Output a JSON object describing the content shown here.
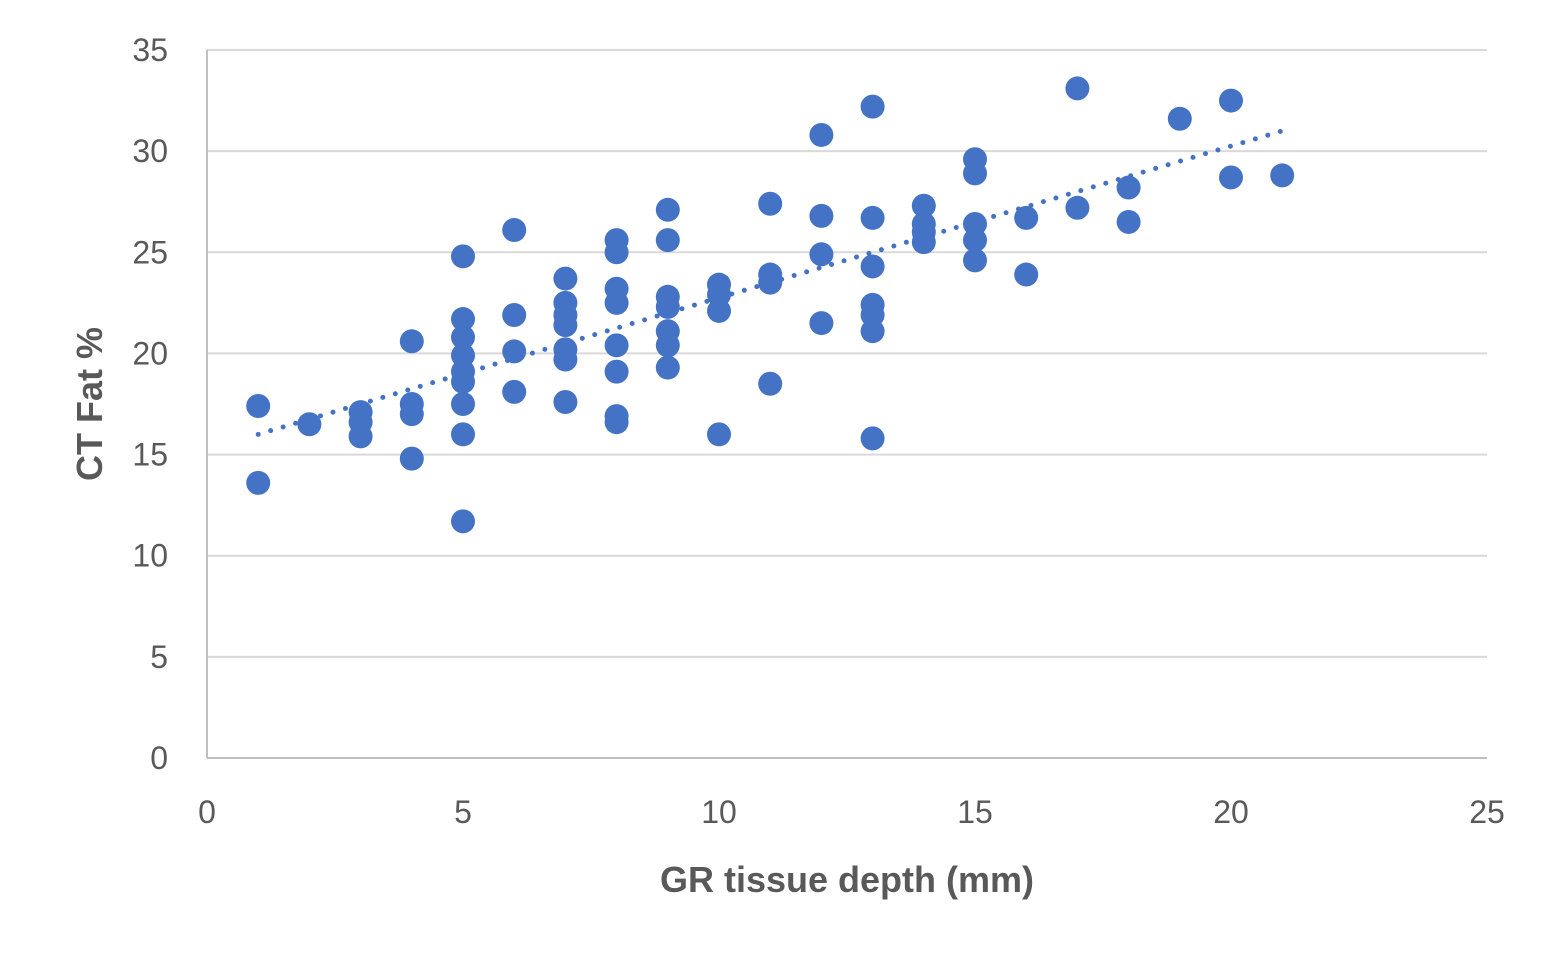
{
  "chart_data": {
    "type": "scatter",
    "title": "",
    "xlabel": "GR tissue depth (mm)",
    "ylabel": "CT Fat %",
    "xlim": [
      0,
      25
    ],
    "ylim": [
      0,
      35
    ],
    "x_ticks": [
      "0",
      "5",
      "10",
      "15",
      "20",
      "25"
    ],
    "y_ticks": [
      "0",
      "5",
      "10",
      "15",
      "20",
      "25",
      "30",
      "35"
    ],
    "grid": "horizontal",
    "legend": "none",
    "marker_color": "#4472c4",
    "trendline": {
      "type": "linear",
      "style": "dotted",
      "color": "#4472c4",
      "x_range": [
        1,
        21
      ],
      "y_range": [
        16.0,
        31.0
      ]
    },
    "series": [
      {
        "points": [
          [
            1,
            17.4
          ],
          [
            1,
            13.6
          ],
          [
            2,
            16.5
          ],
          [
            3,
            17.1
          ],
          [
            3,
            16.6
          ],
          [
            3,
            15.9
          ],
          [
            4,
            20.6
          ],
          [
            4,
            17.5
          ],
          [
            4,
            17.0
          ],
          [
            4,
            14.8
          ],
          [
            5,
            24.8
          ],
          [
            5,
            21.7
          ],
          [
            5,
            20.8
          ],
          [
            5,
            19.9
          ],
          [
            5,
            19.1
          ],
          [
            5,
            18.6
          ],
          [
            5,
            17.5
          ],
          [
            5,
            16.0
          ],
          [
            5,
            11.7
          ],
          [
            6,
            26.1
          ],
          [
            6,
            21.9
          ],
          [
            6,
            20.1
          ],
          [
            6,
            18.1
          ],
          [
            7,
            23.7
          ],
          [
            7,
            22.5
          ],
          [
            7,
            21.9
          ],
          [
            7,
            21.4
          ],
          [
            7,
            20.2
          ],
          [
            7,
            19.7
          ],
          [
            7,
            17.6
          ],
          [
            8,
            25.6
          ],
          [
            8,
            25.0
          ],
          [
            8,
            23.2
          ],
          [
            8,
            22.5
          ],
          [
            8,
            20.4
          ],
          [
            8,
            19.1
          ],
          [
            8,
            16.9
          ],
          [
            8,
            16.6
          ],
          [
            9,
            27.1
          ],
          [
            9,
            25.6
          ],
          [
            9,
            22.8
          ],
          [
            9,
            22.3
          ],
          [
            9,
            21.1
          ],
          [
            9,
            20.4
          ],
          [
            9,
            19.3
          ],
          [
            10,
            23.4
          ],
          [
            10,
            22.9
          ],
          [
            10,
            22.1
          ],
          [
            10,
            16.0
          ],
          [
            11,
            27.4
          ],
          [
            11,
            23.9
          ],
          [
            11,
            23.5
          ],
          [
            11,
            18.5
          ],
          [
            12,
            30.8
          ],
          [
            12,
            26.8
          ],
          [
            12,
            24.9
          ],
          [
            12,
            21.5
          ],
          [
            13,
            32.2
          ],
          [
            13,
            26.7
          ],
          [
            13,
            24.3
          ],
          [
            13,
            22.4
          ],
          [
            13,
            21.9
          ],
          [
            13,
            21.1
          ],
          [
            13,
            15.8
          ],
          [
            14,
            27.3
          ],
          [
            14,
            26.4
          ],
          [
            14,
            26.0
          ],
          [
            14,
            25.5
          ],
          [
            15,
            29.6
          ],
          [
            15,
            28.9
          ],
          [
            15,
            26.4
          ],
          [
            15,
            25.6
          ],
          [
            15,
            24.6
          ],
          [
            16,
            26.7
          ],
          [
            16,
            23.9
          ],
          [
            17,
            33.1
          ],
          [
            17,
            27.2
          ],
          [
            18,
            28.2
          ],
          [
            18,
            26.5
          ],
          [
            19,
            31.6
          ],
          [
            20,
            32.5
          ],
          [
            20,
            28.7
          ],
          [
            21,
            28.8
          ]
        ]
      }
    ]
  }
}
